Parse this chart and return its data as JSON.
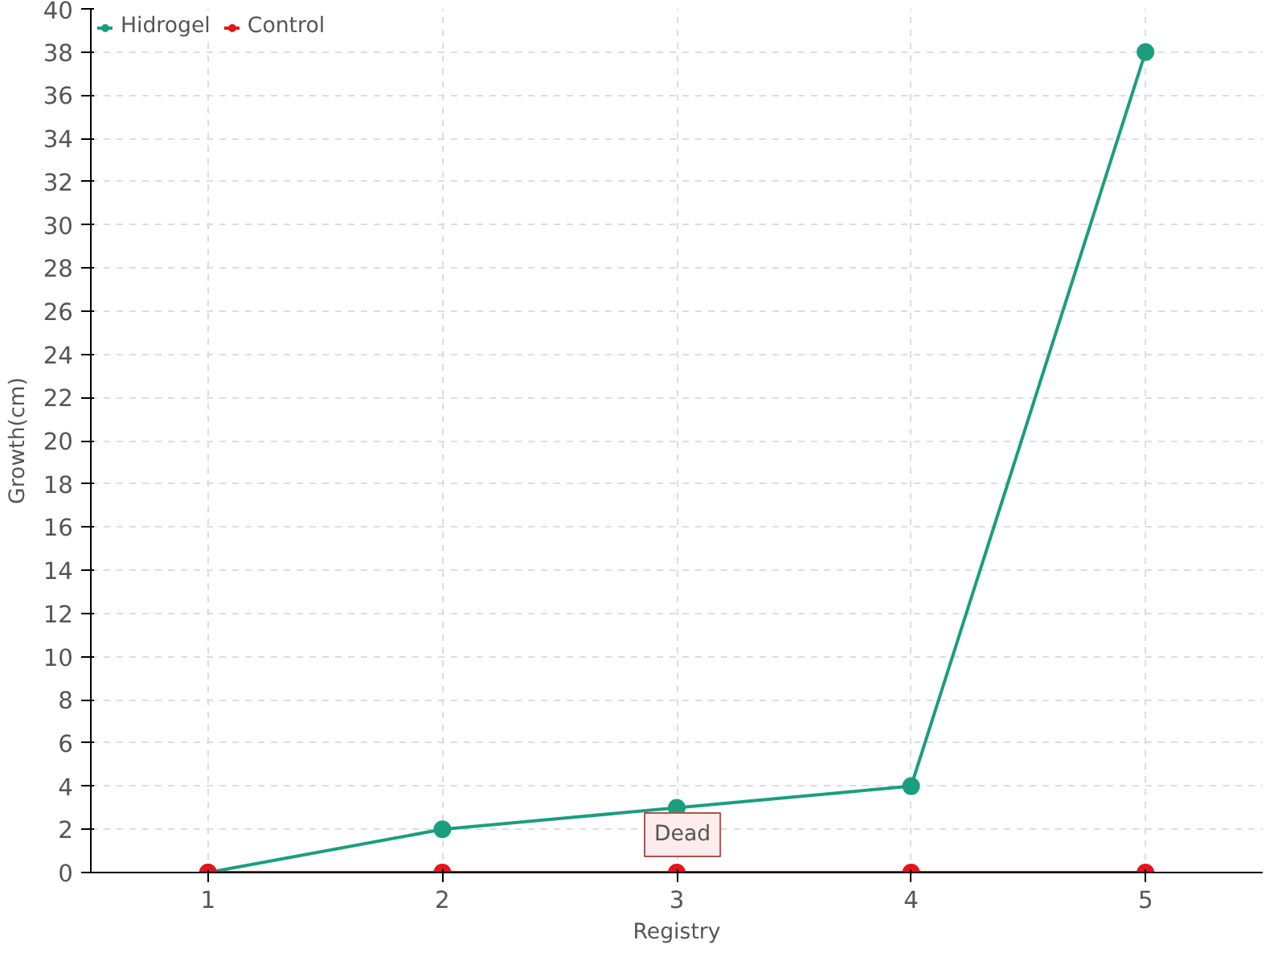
{
  "chart_data": {
    "type": "line",
    "xlabel": "Registry",
    "ylabel": "Growth(cm)",
    "x": [
      1,
      2,
      3,
      4,
      5
    ],
    "series": [
      {
        "name": "Hidrogel",
        "color": "#1a9e7e",
        "values": [
          0,
          2,
          3,
          4,
          38
        ]
      },
      {
        "name": "Control",
        "color": "#e8141c",
        "values": [
          0,
          0,
          0,
          0,
          0
        ]
      }
    ],
    "xlim": [
      0.5,
      5.5
    ],
    "xticks": [
      1,
      2,
      3,
      4,
      5
    ],
    "ylim": [
      0,
      40
    ],
    "yticks": [
      0,
      2,
      4,
      6,
      8,
      10,
      12,
      14,
      16,
      18,
      20,
      22,
      24,
      26,
      28,
      30,
      32,
      34,
      36,
      38,
      40
    ],
    "annotations": [
      {
        "text": "Dead",
        "x": 3,
        "y": 0
      }
    ],
    "grid": true,
    "legend": "top left",
    "marker": "circle",
    "line_style": "solid"
  }
}
